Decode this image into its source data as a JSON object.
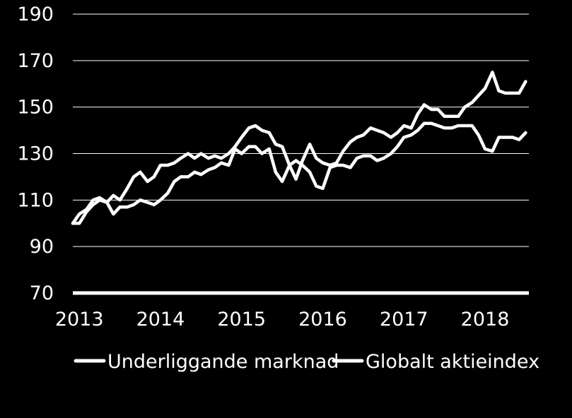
{
  "chart_data": {
    "type": "line",
    "title": "",
    "xlabel": "",
    "ylabel": "",
    "ylim": [
      70,
      190
    ],
    "xlim": [
      2013,
      2018.62
    ],
    "y_ticks": [
      70,
      90,
      110,
      130,
      150,
      170,
      190
    ],
    "x_ticks": [
      2013,
      2014,
      2015,
      2016,
      2017,
      2018
    ],
    "x_tick_labels": [
      "2013",
      "2014",
      "2015",
      "2016",
      "2017",
      "2018"
    ],
    "grid": "horizontal",
    "legend_position": "bottom",
    "colors": {
      "background": "#000000",
      "lines": "#ffffff",
      "grid": "#ffffff"
    },
    "series": [
      {
        "name": "Underliggande marknad",
        "x": [
          2013.0,
          2013.08,
          2013.17,
          2013.25,
          2013.33,
          2013.42,
          2013.5,
          2013.58,
          2013.67,
          2013.75,
          2013.83,
          2013.92,
          2014.0,
          2014.08,
          2014.17,
          2014.25,
          2014.33,
          2014.42,
          2014.5,
          2014.58,
          2014.67,
          2014.75,
          2014.83,
          2014.92,
          2015.0,
          2015.08,
          2015.17,
          2015.25,
          2015.33,
          2015.42,
          2015.5,
          2015.58,
          2015.67,
          2015.75,
          2015.83,
          2015.92,
          2016.0,
          2016.08,
          2016.17,
          2016.25,
          2016.33,
          2016.42,
          2016.5,
          2016.58,
          2016.67,
          2016.75,
          2016.83,
          2016.92,
          2017.0,
          2017.08,
          2017.17,
          2017.25,
          2017.33,
          2017.42,
          2017.5,
          2017.58,
          2017.67,
          2017.75,
          2017.83,
          2017.92,
          2018.0,
          2018.08,
          2018.17,
          2018.25,
          2018.33,
          2018.42,
          2018.5,
          2018.58
        ],
        "values": [
          100,
          100,
          105,
          108,
          110,
          109,
          104,
          107,
          107,
          108,
          110,
          109,
          108,
          110,
          113,
          118,
          120,
          120,
          122,
          121,
          123,
          124,
          126,
          125,
          132,
          130,
          133,
          133,
          130,
          132,
          122,
          118,
          125,
          127,
          125,
          122,
          116,
          115,
          124,
          125,
          125,
          124,
          128,
          129,
          129,
          127,
          128,
          130,
          133,
          137,
          138,
          140,
          143,
          143,
          142,
          141,
          141,
          142,
          142,
          142,
          138,
          132,
          131,
          137,
          137,
          137,
          136,
          139
        ]
      },
      {
        "name": "Globalt aktieindex",
        "x": [
          2013.0,
          2013.08,
          2013.17,
          2013.25,
          2013.33,
          2013.42,
          2013.5,
          2013.58,
          2013.67,
          2013.75,
          2013.83,
          2013.92,
          2014.0,
          2014.08,
          2014.17,
          2014.25,
          2014.33,
          2014.42,
          2014.5,
          2014.58,
          2014.67,
          2014.75,
          2014.83,
          2014.92,
          2015.0,
          2015.08,
          2015.17,
          2015.25,
          2015.33,
          2015.42,
          2015.5,
          2015.58,
          2015.67,
          2015.75,
          2015.83,
          2015.92,
          2016.0,
          2016.08,
          2016.17,
          2016.25,
          2016.33,
          2016.42,
          2016.5,
          2016.58,
          2016.67,
          2016.75,
          2016.83,
          2016.92,
          2017.0,
          2017.08,
          2017.17,
          2017.25,
          2017.33,
          2017.42,
          2017.5,
          2017.58,
          2017.67,
          2017.75,
          2017.83,
          2017.92,
          2018.0,
          2018.08,
          2018.17,
          2018.25,
          2018.33,
          2018.42,
          2018.5,
          2018.58
        ],
        "values": [
          100,
          104,
          106,
          110,
          111,
          109,
          112,
          110,
          115,
          120,
          122,
          118,
          120,
          125,
          125,
          126,
          128,
          130,
          128,
          130,
          128,
          129,
          128,
          130,
          133,
          137,
          141,
          142,
          140,
          139,
          134,
          133,
          125,
          119,
          127,
          134,
          128,
          126,
          125,
          126,
          131,
          135,
          137,
          138,
          141,
          140,
          139,
          137,
          139,
          142,
          141,
          147,
          151,
          149,
          149,
          146,
          146,
          146,
          150,
          152,
          155,
          158,
          165,
          157,
          156,
          156,
          156,
          161
        ]
      }
    ]
  }
}
